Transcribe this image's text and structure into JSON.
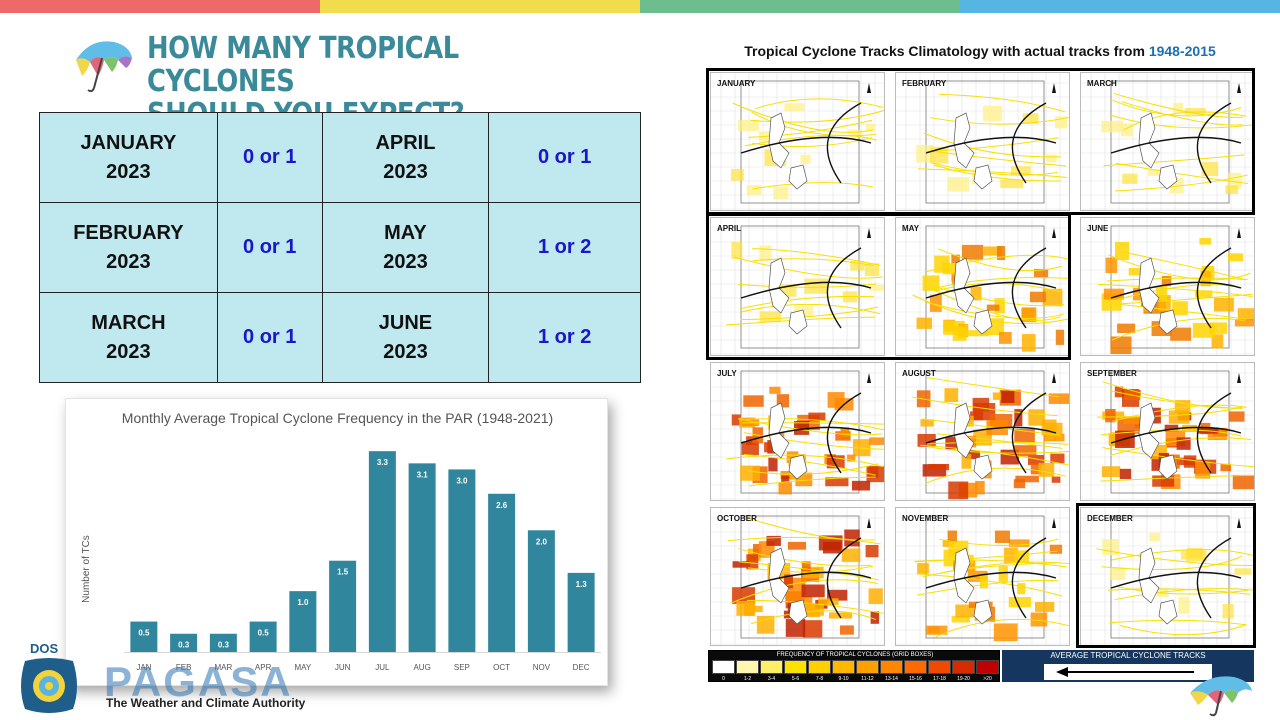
{
  "colors": {
    "stripe": [
      "#ee6a6a",
      "#f2dc4e",
      "#6cbf8c",
      "#55b6e3"
    ],
    "title": "#3a8a9a",
    "table_bg": "#bfe9ee",
    "table_value": "#1818c8",
    "bar": "#30869c",
    "legend_title_year": "#1a6fb8"
  },
  "slide": {
    "title_line1": "HOW MANY TROPICAL CYCLONES",
    "title_line2": "SHOULD YOU EXPECT?"
  },
  "outlook_table": {
    "rows": [
      {
        "left_month": "JANUARY",
        "left_year": "2023",
        "left_value": "0 or 1",
        "right_month": "APRIL",
        "right_year": "2023",
        "right_value": "0 or 1"
      },
      {
        "left_month": "FEBRUARY",
        "left_year": "2023",
        "left_value": "0 or 1",
        "right_month": "MAY",
        "right_year": "2023",
        "right_value": "1 or 2"
      },
      {
        "left_month": "MARCH",
        "left_year": "2023",
        "left_value": "0 or 1",
        "right_month": "JUNE",
        "right_year": "2023",
        "right_value": "1 or 2"
      }
    ]
  },
  "chart_data": {
    "type": "bar",
    "title": "Monthly Average Tropical Cyclone Frequency in the PAR (1948-2021)",
    "xlabel": "",
    "ylabel": "Number of TCs",
    "categories": [
      "JAN",
      "FEB",
      "MAR",
      "APR",
      "MAY",
      "JUN",
      "JUL",
      "AUG",
      "SEP",
      "OCT",
      "NOV",
      "DEC"
    ],
    "values": [
      0.5,
      0.3,
      0.3,
      0.5,
      1.0,
      1.5,
      3.3,
      3.1,
      3.0,
      2.6,
      2.0,
      1.3
    ],
    "data_labels": [
      "0.5",
      "0.3",
      "0.3",
      "0.5",
      "1.0",
      "1.5",
      "3.3",
      "3.1",
      "3.0",
      "2.6",
      "2.0",
      "1.3"
    ],
    "ylim": [
      0,
      3.5
    ],
    "grid": false,
    "legend": "none",
    "bar_color": "#30869c"
  },
  "climatology": {
    "title_main": "Tropical Cyclone Tracks Climatology with actual tracks from",
    "title_years": "1948-2015",
    "months": [
      {
        "label": "JANUARY",
        "density": 0
      },
      {
        "label": "FEBRUARY",
        "density": 0
      },
      {
        "label": "MARCH",
        "density": 0
      },
      {
        "label": "APRIL",
        "density": 0
      },
      {
        "label": "MAY",
        "density": 1
      },
      {
        "label": "JUNE",
        "density": 1
      },
      {
        "label": "JULY",
        "density": 2
      },
      {
        "label": "AUGUST",
        "density": 2
      },
      {
        "label": "SEPTEMBER",
        "density": 2
      },
      {
        "label": "OCTOBER",
        "density": 2
      },
      {
        "label": "NOVEMBER",
        "density": 1
      },
      {
        "label": "DECEMBER",
        "density": 0
      }
    ],
    "legend_title": "FREQUENCY OF TROPICAL CYCLONES (GRID BOXES)",
    "legend_bins": [
      "0",
      "1-2",
      "3-4",
      "5-6",
      "7-8",
      "9-10",
      "11-12",
      "13-14",
      "15-16",
      "17-18",
      "19-20",
      ">20"
    ],
    "legend_colors": [
      "#ffffff",
      "#fff6b0",
      "#ffee66",
      "#ffe100",
      "#ffcf00",
      "#ffb700",
      "#ff9f00",
      "#ff8600",
      "#ff6a00",
      "#f04a00",
      "#d82a00",
      "#c00000"
    ],
    "tracks_key_title": "AVERAGE TROPICAL CYCLONE TRACKS"
  },
  "agency": {
    "dos": "DOS",
    "name": "PAGASA",
    "tagline": "The Weather and Climate Authority"
  }
}
